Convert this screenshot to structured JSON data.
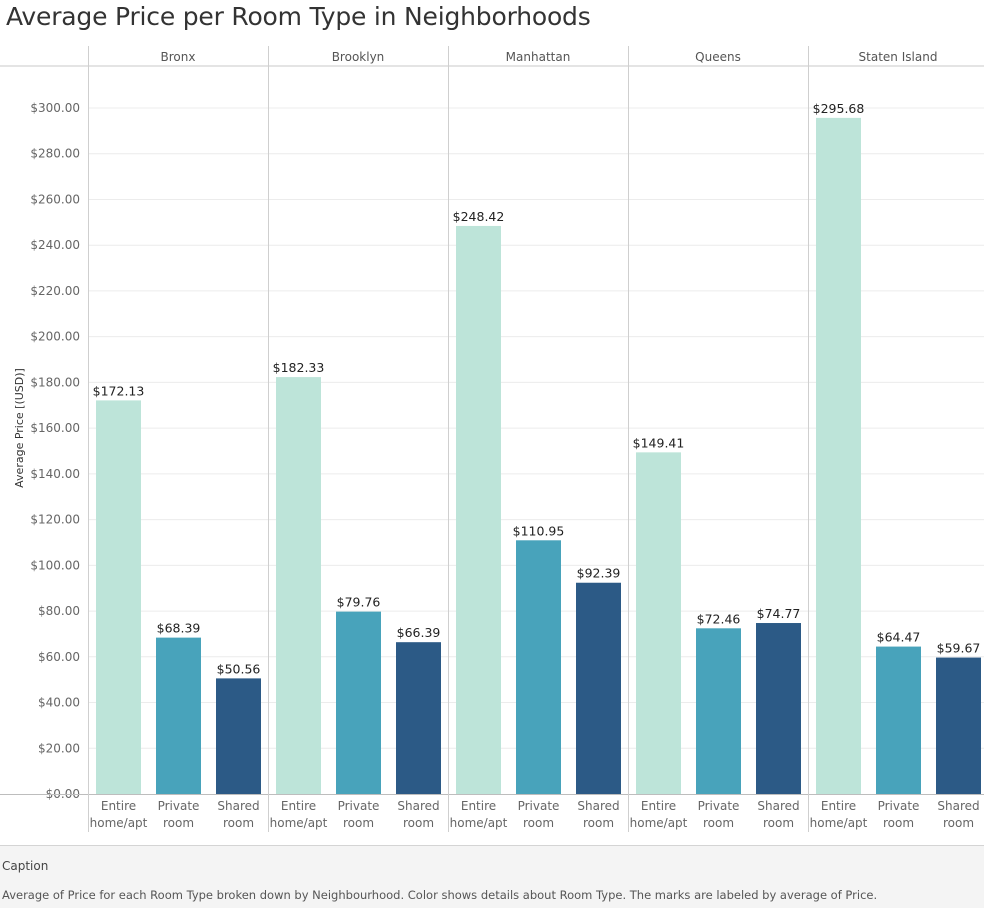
{
  "title": "Average Price per Room Type in Neighborhoods",
  "caption": {
    "title": "Caption",
    "text": "Average of Price for each Room Type broken down by Neighbourhood.  Color shows details about Room Type.  The marks are labeled by average of Price."
  },
  "colors": {
    "Entire home/apt": "#bde4d9",
    "Private room": "#48a3bb",
    "Shared room": "#2c5a86"
  },
  "chart_data": {
    "type": "bar",
    "title": "Average Price per Room Type in Neighborhoods",
    "ylabel": "Average Price [(USD)]",
    "ylim": [
      0,
      300
    ],
    "yticks": [
      "$0.00",
      "$20.00",
      "$40.00",
      "$60.00",
      "$80.00",
      "$100.00",
      "$120.00",
      "$140.00",
      "$160.00",
      "$180.00",
      "$200.00",
      "$220.00",
      "$240.00",
      "$260.00",
      "$280.00",
      "$300.00"
    ],
    "grid": true,
    "panels": [
      "Bronx",
      "Brooklyn",
      "Manhattan",
      "Queens",
      "Staten Island"
    ],
    "categories": [
      "Entire home/apt",
      "Private room",
      "Shared room"
    ],
    "category_labels": [
      [
        "Entire",
        "home/apt"
      ],
      [
        "Private",
        "room"
      ],
      [
        "Shared",
        "room"
      ]
    ],
    "values": [
      [
        172.13,
        68.39,
        50.56
      ],
      [
        182.33,
        79.76,
        66.39
      ],
      [
        248.42,
        110.95,
        92.39
      ],
      [
        149.41,
        72.46,
        74.77
      ],
      [
        295.68,
        64.47,
        59.67
      ]
    ],
    "data_labels": [
      [
        "$172.13",
        "$68.39",
        "$50.56"
      ],
      [
        "$182.33",
        "$79.76",
        "$66.39"
      ],
      [
        "$248.42",
        "$110.95",
        "$92.39"
      ],
      [
        "$149.41",
        "$72.46",
        "$74.77"
      ],
      [
        "$295.68",
        "$64.47",
        "$59.67"
      ]
    ]
  }
}
